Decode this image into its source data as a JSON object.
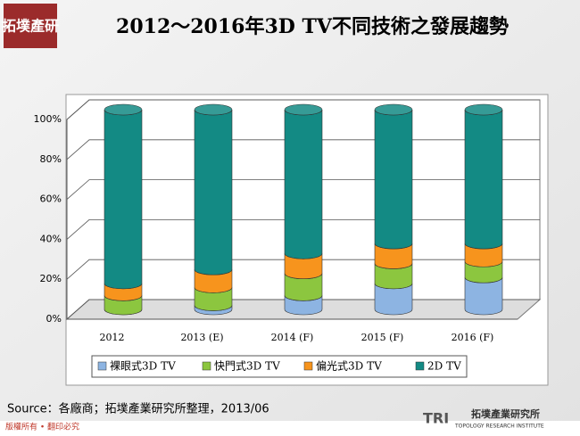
{
  "page": {
    "logo": "拓墣產研",
    "source": "Source：各廠商；拓墣產業研究所整理，2013/06",
    "copyright": "版權所有 • 翻印必究",
    "brand": "拓墣產業研究所",
    "brand_sub": "TOPOLOGY RESEARCH INSTITUTE"
  },
  "chart_data": {
    "type": "stacked-cylinder",
    "title": "2012～2016年3D TV不同技術之發展趨勢",
    "categories": [
      "2012",
      "2013 (E)",
      "2014 (F)",
      "2015 (F)",
      "2016 (F)"
    ],
    "series": [
      {
        "name": "裸眼式3D TV",
        "color": "#8db4e2",
        "values": [
          0,
          2,
          7,
          13,
          16
        ]
      },
      {
        "name": "快門式3D TV",
        "color": "#8cc63f",
        "values": [
          7,
          9,
          11,
          10,
          8
        ]
      },
      {
        "name": "偏光式3D TV",
        "color": "#f7941d",
        "values": [
          6,
          9,
          10,
          10,
          9
        ]
      },
      {
        "name": "2D TV",
        "color": "#138a84",
        "values": [
          87,
          80,
          72,
          67,
          67
        ]
      }
    ],
    "ylim": [
      0,
      100
    ],
    "yticks": [
      {
        "value": 0,
        "label": "0%"
      },
      {
        "value": 20,
        "label": "20%"
      },
      {
        "value": 40,
        "label": "40%"
      },
      {
        "value": 60,
        "label": "60%"
      },
      {
        "value": 80,
        "label": "80%"
      },
      {
        "value": 100,
        "label": "100%"
      }
    ],
    "grid": true,
    "legend": "bottom"
  }
}
